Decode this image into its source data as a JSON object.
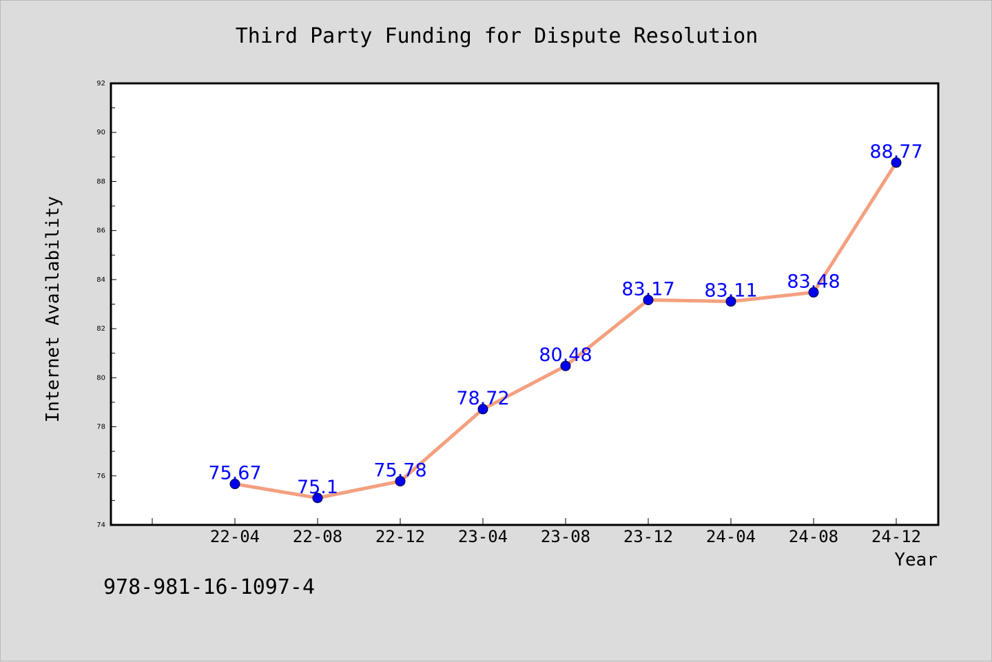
{
  "chart_data": {
    "type": "line",
    "title": "Third Party Funding for Dispute Resolution",
    "xlabel": "Year",
    "ylabel": "Internet Availability",
    "categories": [
      "22-04",
      "22-08",
      "22-12",
      "23-04",
      "23-08",
      "23-12",
      "24-04",
      "24-08",
      "24-12"
    ],
    "values": [
      75.67,
      75.1,
      75.78,
      78.72,
      80.48,
      83.17,
      83.11,
      83.48,
      88.77
    ],
    "data_labels": [
      "75.67",
      "75.1",
      "75.78",
      "78.72",
      "80.48",
      "83.17",
      "83.11",
      "83.48",
      "88.77"
    ],
    "ylim": [
      74,
      92
    ],
    "yticks": [
      "74",
      "76",
      "78",
      "80",
      "82",
      "84",
      "86",
      "88",
      "90",
      "92"
    ],
    "grid": false,
    "legend": "none",
    "colors": {
      "line": "#f4a07f",
      "marker": "#0000ee",
      "label": "#0000ff",
      "axes": "#000000"
    }
  },
  "footer": {
    "code": "978-981-16-1097-4"
  }
}
